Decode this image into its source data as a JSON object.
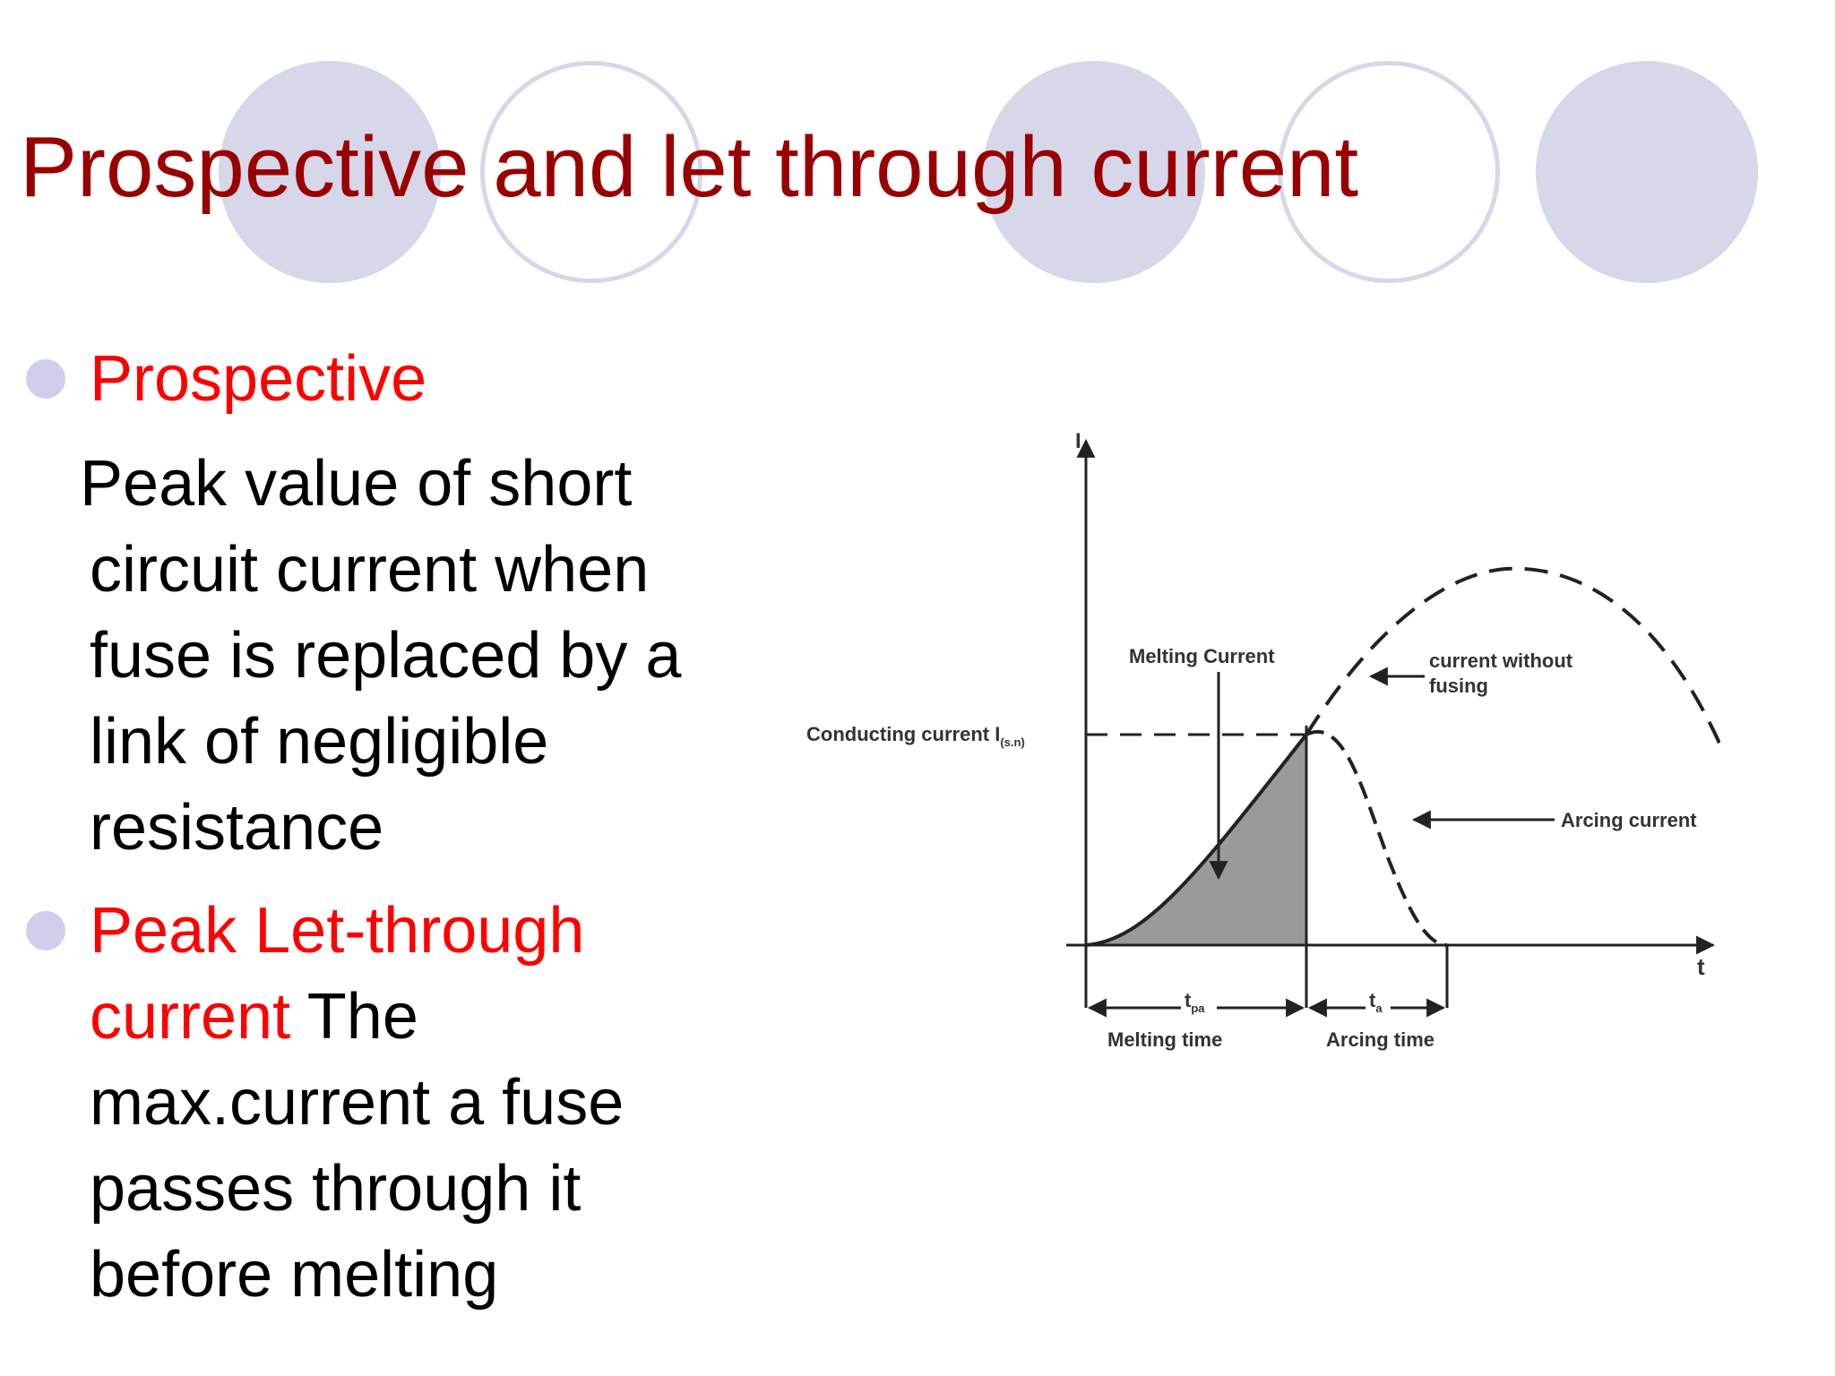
{
  "title": "Prospective and let through current",
  "bullets": [
    {
      "heading": "Prospective",
      "body_lines": [
        "Peak value of short",
        "circuit current when",
        "fuse is replaced by a",
        "link of negligible",
        "resistance"
      ]
    },
    {
      "heading_lines": [
        "Peak Let-through",
        "current"
      ],
      "body_inline": " The",
      "body_lines": [
        "max.current a fuse",
        "passes through it",
        "before melting"
      ]
    }
  ],
  "diagram": {
    "y_axis_label": "I",
    "x_axis_label": "t",
    "melting_current_label": "Melting Current",
    "conducting_current_label": "Conducting current I",
    "conducting_current_subscript": "(s.n)",
    "current_without_fusing_label_line1": "current without",
    "current_without_fusing_label_line2": "fusing",
    "arcing_current_label": "Arcing current",
    "tpa_label": "t",
    "tpa_subscript": "pa",
    "melting_time_label": "Melting time",
    "ta_label": "t",
    "ta_subscript": "a",
    "arcing_time_label": "Arcing time",
    "colors": {
      "line": "#222222",
      "shade": "#9a9a9a",
      "decor": "#d7d7ea",
      "title": "#990000",
      "heading": "#ff0000"
    }
  }
}
